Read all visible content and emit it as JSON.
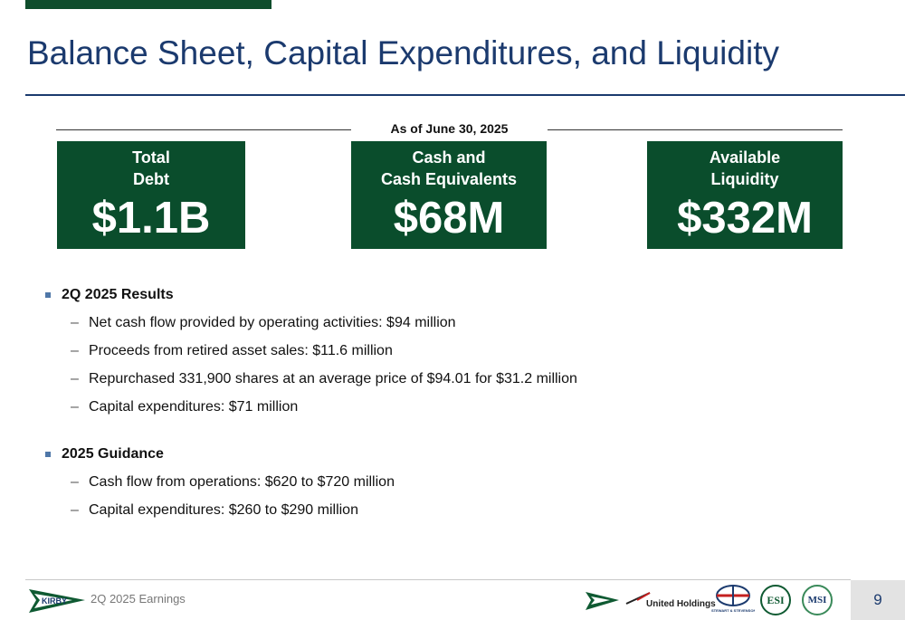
{
  "title": "Balance Sheet, Capital Expenditures, and Liquidity",
  "as_of": "As of June 30, 2025",
  "kpis": {
    "debt": {
      "label_1": "Total",
      "label_2": "Debt",
      "value": "$1.1B"
    },
    "cash": {
      "label_1": "Cash and",
      "label_2": "Cash Equivalents",
      "value": "$68M"
    },
    "liquidity": {
      "label_1": "Available",
      "label_2": "Liquidity",
      "value": "$332M"
    }
  },
  "results": {
    "heading": "2Q 2025 Results",
    "items": [
      "Net cash flow provided by operating activities: $94 million",
      "Proceeds from retired asset sales: $11.6 million",
      "Repurchased 331,900 shares at an average price of $94.01 for $31.2 million",
      "Capital expenditures: $71 million"
    ]
  },
  "guidance": {
    "heading": "2025 Guidance",
    "items": [
      "Cash flow from operations: $620 to $720 million",
      "Capital expenditures: $260 to $290 million"
    ]
  },
  "footer": {
    "text": "2Q 2025 Earnings",
    "page": "9",
    "kirby_logo_text": "KIRBY",
    "logos": {
      "united": "United Holdings",
      "stewart": "STEWART & STEVENSON",
      "esi": "ESI",
      "msi": "MSI"
    }
  },
  "colors": {
    "brand_green": "#0a4d2c",
    "title_blue": "#1b3a6e",
    "bullet_blue": "#4f77a8"
  }
}
